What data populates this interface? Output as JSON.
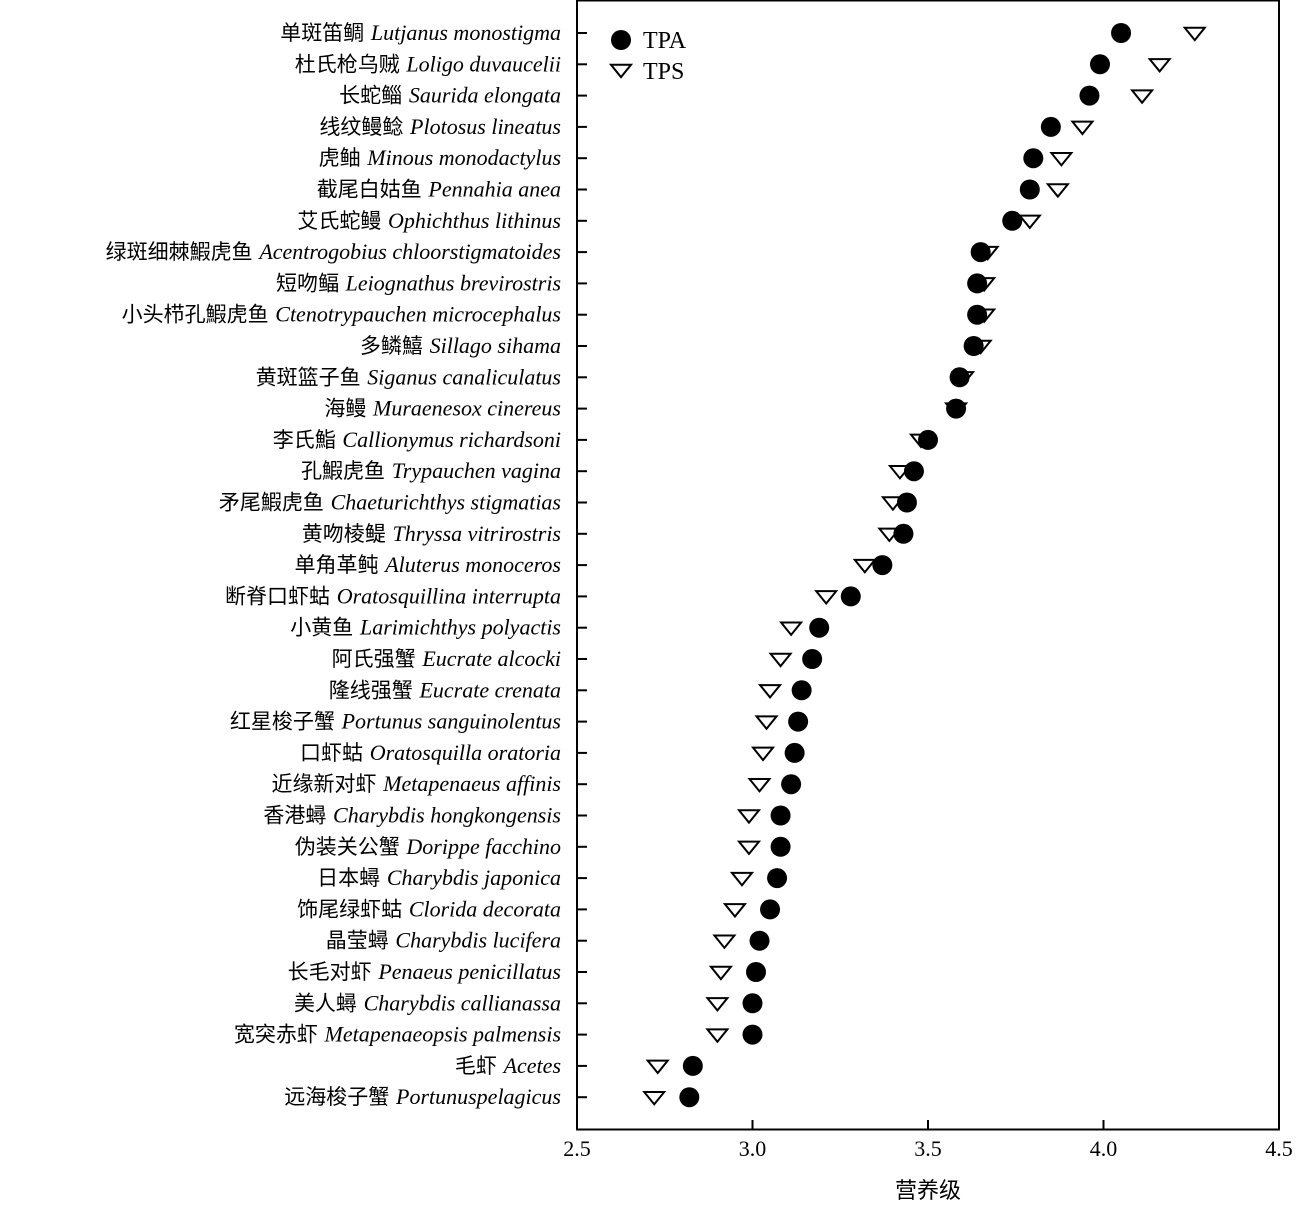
{
  "chart_data": {
    "type": "scatter",
    "xlabel": "营养级",
    "xlim": [
      2.5,
      4.5
    ],
    "xticks": [
      "2.5",
      "3.0",
      "3.5",
      "4.0",
      "4.5"
    ],
    "legend": {
      "placement": "top-left",
      "entries": [
        {
          "name": "TPA",
          "marker": "filled-circle"
        },
        {
          "name": "TPS",
          "marker": "open-down-triangle"
        }
      ]
    },
    "species": [
      {
        "cn": "单斑笛鲷",
        "latin": "Lutjanus monostigma",
        "tpa": 4.05,
        "tps": 4.26
      },
      {
        "cn": "杜氏枪乌贼",
        "latin": "Loligo duvaucelii",
        "tpa": 3.99,
        "tps": 4.16
      },
      {
        "cn": "长蛇鲻",
        "latin": "Saurida elongata",
        "tpa": 3.96,
        "tps": 4.11
      },
      {
        "cn": "线纹鳗鲶",
        "latin": "Plotosus lineatus",
        "tpa": 3.85,
        "tps": 3.94
      },
      {
        "cn": "虎鲉",
        "latin": "Minous monodactylus",
        "tpa": 3.8,
        "tps": 3.88
      },
      {
        "cn": "截尾白姑鱼",
        "latin": "Pennahia anea",
        "tpa": 3.79,
        "tps": 3.87
      },
      {
        "cn": "艾氏蛇鳗",
        "latin": "Ophichthus lithinus",
        "tpa": 3.74,
        "tps": 3.79
      },
      {
        "cn": "绿斑细棘鰕虎鱼",
        "latin": "Acentrogobius chloorstigmatoides",
        "tpa": 3.65,
        "tps": 3.67
      },
      {
        "cn": "短吻鲾",
        "latin": "Leiognathus brevirostris",
        "tpa": 3.64,
        "tps": 3.66
      },
      {
        "cn": "小头栉孔鰕虎鱼",
        "latin": "Ctenotrypauchen microcephalus",
        "tpa": 3.64,
        "tps": 3.66
      },
      {
        "cn": "多鳞鱚",
        "latin": "Sillago sihama",
        "tpa": 3.63,
        "tps": 3.65
      },
      {
        "cn": "黄斑篮子鱼",
        "latin": "Siganus canaliculatus",
        "tpa": 3.59,
        "tps": 3.6
      },
      {
        "cn": "海鳗",
        "latin": "Muraenesox cinereus",
        "tpa": 3.58,
        "tps": 3.58
      },
      {
        "cn": "李氏鮨",
        "latin": "Callionymus richardsoni",
        "tpa": 3.5,
        "tps": 3.48
      },
      {
        "cn": "孔鰕虎鱼",
        "latin": "Trypauchen vagina",
        "tpa": 3.46,
        "tps": 3.42
      },
      {
        "cn": "矛尾鰕虎鱼",
        "latin": "Chaeturichthys stigmatias",
        "tpa": 3.44,
        "tps": 3.4
      },
      {
        "cn": "黄吻棱鳀",
        "latin": "Thryssa vitrirostris",
        "tpa": 3.43,
        "tps": 3.39
      },
      {
        "cn": "单角革鲀",
        "latin": "Aluterus monoceros",
        "tpa": 3.37,
        "tps": 3.32
      },
      {
        "cn": "断脊口虾蛄",
        "latin": "Oratosquillina interrupta",
        "tpa": 3.28,
        "tps": 3.21
      },
      {
        "cn": "小黄鱼",
        "latin": "Larimichthys polyactis",
        "tpa": 3.19,
        "tps": 3.11
      },
      {
        "cn": "阿氏强蟹",
        "latin": "Eucrate alcocki",
        "tpa": 3.17,
        "tps": 3.08
      },
      {
        "cn": "隆线强蟹",
        "latin": "Eucrate crenata",
        "tpa": 3.14,
        "tps": 3.05
      },
      {
        "cn": "红星梭子蟹",
        "latin": "Portunus sanguinolentus",
        "tpa": 3.13,
        "tps": 3.04
      },
      {
        "cn": "口虾蛄",
        "latin": "Oratosquilla oratoria",
        "tpa": 3.12,
        "tps": 3.03
      },
      {
        "cn": "近缘新对虾",
        "latin": "Metapenaeus affinis",
        "tpa": 3.11,
        "tps": 3.02
      },
      {
        "cn": "香港蟳",
        "latin": "Charybdis hongkongensis",
        "tpa": 3.08,
        "tps": 2.99
      },
      {
        "cn": "伪装关公蟹",
        "latin": "Dorippe facchino",
        "tpa": 3.08,
        "tps": 2.99
      },
      {
        "cn": "日本蟳",
        "latin": "Charybdis japonica",
        "tpa": 3.07,
        "tps": 2.97
      },
      {
        "cn": "饰尾绿虾蛄",
        "latin": "Clorida decorata",
        "tpa": 3.05,
        "tps": 2.95
      },
      {
        "cn": "晶莹蟳",
        "latin": "Charybdis lucifera",
        "tpa": 3.02,
        "tps": 2.92
      },
      {
        "cn": "长毛对虾",
        "latin": "Penaeus penicillatus",
        "tpa": 3.01,
        "tps": 2.91
      },
      {
        "cn": "美人蟳",
        "latin": "Charybdis callianassa",
        "tpa": 3.0,
        "tps": 2.9
      },
      {
        "cn": "宽突赤虾",
        "latin": "Metapenaeopsis palmensis",
        "tpa": 3.0,
        "tps": 2.9
      },
      {
        "cn": "毛虾",
        "latin": "Acetes",
        "tpa": 2.83,
        "tps": 2.73
      },
      {
        "cn": "远海梭子蟹",
        "latin": "Portunuspelagicus",
        "tpa": 2.82,
        "tps": 2.72
      }
    ]
  }
}
